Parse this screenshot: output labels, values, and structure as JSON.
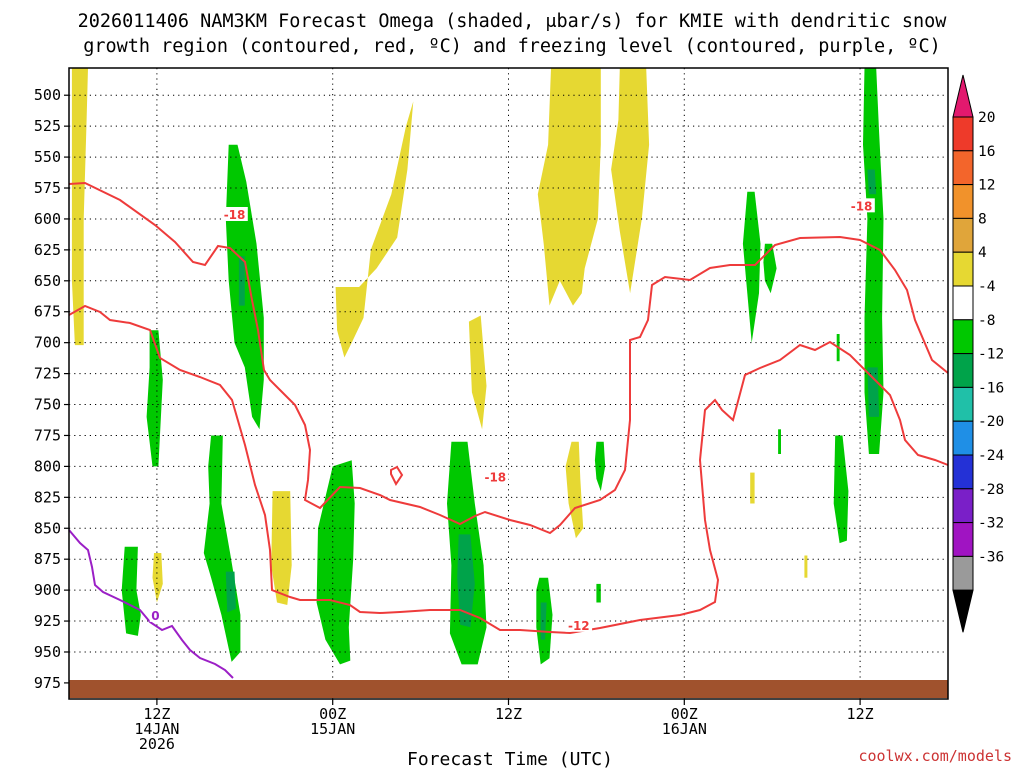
{
  "chart_data": {
    "type": "heatmap",
    "title_line1": "2026011406 NAM3KM Forecast Omega (shaded, μbar/s) for KMIE with dendritic snow",
    "title_line2": "growth region (contoured, red, ºC) and freezing level (contoured, purple, ºC)",
    "xlabel": "Forecast Time (UTC)",
    "credit": "coolwx.com/models",
    "x_range_hours": [
      0,
      60
    ],
    "y_range_hpa": [
      988,
      478
    ],
    "y_ticks": [
      500,
      525,
      550,
      575,
      600,
      625,
      650,
      675,
      700,
      725,
      750,
      775,
      800,
      825,
      850,
      875,
      900,
      925,
      950,
      975
    ],
    "x_ticks": [
      {
        "hour": 6,
        "lines": [
          "12Z",
          "14JAN",
          "2026"
        ]
      },
      {
        "hour": 18,
        "lines": [
          "00Z",
          "15JAN"
        ]
      },
      {
        "hour": 30,
        "lines": [
          "12Z"
        ]
      },
      {
        "hour": 42,
        "lines": [
          "00Z",
          "16JAN"
        ]
      },
      {
        "hour": 54,
        "lines": [
          "12Z"
        ]
      }
    ],
    "colorbar": {
      "labels": [
        20,
        16,
        12,
        8,
        4,
        -4,
        -8,
        -12,
        -16,
        -20,
        -24,
        -28,
        -32,
        -36
      ],
      "colors": [
        "#e2196e",
        "#ee3a2a",
        "#f3652b",
        "#f1922b",
        "#e0a53a",
        "#e6d832",
        "#ffffff",
        "#00c800",
        "#00a34a",
        "#20c0a8",
        "#1f8fe6",
        "#2431d6",
        "#7a1fc8",
        "#a014c2",
        "#9a9a9a",
        "#000000"
      ]
    },
    "contour_labels": [
      {
        "text": "-18",
        "color": "#ee3b3b",
        "hour": 11.3,
        "hpa": 596
      },
      {
        "text": "-18",
        "color": "#ee3b3b",
        "hour": 29.1,
        "hpa": 808
      },
      {
        "text": "-18",
        "color": "#ee3b3b",
        "hour": 54.1,
        "hpa": 589
      },
      {
        "text": "-12",
        "color": "#ee3b3b",
        "hour": 34.8,
        "hpa": 928
      },
      {
        "text": "0",
        "color": "#9b1fc6",
        "hour": 5.9,
        "hpa": 920
      }
    ],
    "omega_regions": [
      {
        "level": 4,
        "points": [
          [
            0.2,
            478
          ],
          [
            1.3,
            478
          ],
          [
            1.2,
            520
          ],
          [
            1.0,
            600
          ],
          [
            1.0,
            702
          ],
          [
            0.4,
            702
          ],
          [
            0.2,
            650
          ]
        ]
      },
      {
        "level": 4,
        "points": [
          [
            18.2,
            655
          ],
          [
            19.8,
            655
          ],
          [
            21.0,
            640
          ],
          [
            22.4,
            615
          ],
          [
            23.1,
            560
          ],
          [
            23.5,
            505
          ],
          [
            23.0,
            525
          ],
          [
            22.0,
            580
          ],
          [
            20.6,
            625
          ],
          [
            20.1,
            680
          ],
          [
            19.3,
            700
          ],
          [
            18.8,
            712
          ],
          [
            18.3,
            690
          ]
        ]
      },
      {
        "level": 4,
        "points": [
          [
            32.9,
            478
          ],
          [
            36.3,
            478
          ],
          [
            36.3,
            540
          ],
          [
            36.1,
            600
          ],
          [
            35.2,
            640
          ],
          [
            35.0,
            660
          ],
          [
            34.4,
            670
          ],
          [
            33.5,
            650
          ],
          [
            32.8,
            670
          ],
          [
            32.4,
            620
          ],
          [
            32.0,
            580
          ],
          [
            32.7,
            540
          ]
        ]
      },
      {
        "level": 4,
        "points": [
          [
            37.6,
            478
          ],
          [
            39.4,
            478
          ],
          [
            39.6,
            540
          ],
          [
            39.1,
            600
          ],
          [
            38.3,
            660
          ],
          [
            37.6,
            610
          ],
          [
            37.0,
            560
          ],
          [
            37.5,
            520
          ]
        ]
      },
      {
        "level": 4,
        "points": [
          [
            27.3,
            683
          ],
          [
            28.1,
            678
          ],
          [
            28.5,
            735
          ],
          [
            28.2,
            770
          ],
          [
            27.5,
            740
          ]
        ]
      },
      {
        "level": 4,
        "points": [
          [
            34.3,
            780
          ],
          [
            34.8,
            780
          ],
          [
            34.9,
            810
          ],
          [
            35.1,
            850
          ],
          [
            34.6,
            858
          ],
          [
            34.1,
            830
          ],
          [
            33.9,
            800
          ]
        ]
      },
      {
        "level": 4,
        "points": [
          [
            13.9,
            820
          ],
          [
            15.1,
            820
          ],
          [
            15.2,
            880
          ],
          [
            14.9,
            912
          ],
          [
            14.2,
            910
          ],
          [
            13.8,
            880
          ]
        ]
      },
      {
        "level": 4,
        "points": [
          [
            5.8,
            870
          ],
          [
            6.3,
            870
          ],
          [
            6.4,
            895
          ],
          [
            6.0,
            910
          ],
          [
            5.7,
            890
          ]
        ]
      },
      {
        "level": 4,
        "points": [
          [
            46.5,
            805
          ],
          [
            46.8,
            805
          ],
          [
            46.8,
            830
          ],
          [
            46.5,
            830
          ]
        ]
      },
      {
        "level": 4,
        "points": [
          [
            50.2,
            872
          ],
          [
            50.4,
            872
          ],
          [
            50.4,
            890
          ],
          [
            50.2,
            890
          ]
        ]
      },
      {
        "level": -4,
        "points": [
          [
            10.9,
            540
          ],
          [
            11.5,
            540
          ],
          [
            12.1,
            570
          ],
          [
            12.8,
            620
          ],
          [
            13.3,
            680
          ],
          [
            13.3,
            730
          ],
          [
            13.0,
            770
          ],
          [
            12.5,
            760
          ],
          [
            12.0,
            720
          ],
          [
            11.3,
            700
          ],
          [
            10.9,
            650
          ],
          [
            10.7,
            600
          ]
        ]
      },
      {
        "level": -4,
        "points": [
          [
            5.5,
            690
          ],
          [
            6.1,
            690
          ],
          [
            6.4,
            730
          ],
          [
            6.1,
            800
          ],
          [
            5.7,
            800
          ],
          [
            5.3,
            760
          ],
          [
            5.5,
            720
          ]
        ]
      },
      {
        "level": -4,
        "points": [
          [
            9.7,
            775
          ],
          [
            10.5,
            775
          ],
          [
            10.4,
            830
          ],
          [
            11.0,
            870
          ],
          [
            11.7,
            920
          ],
          [
            11.7,
            950
          ],
          [
            11.1,
            958
          ],
          [
            10.4,
            920
          ],
          [
            9.7,
            890
          ],
          [
            9.2,
            870
          ],
          [
            9.6,
            830
          ],
          [
            9.5,
            800
          ]
        ]
      },
      {
        "level": -4,
        "points": [
          [
            3.8,
            865
          ],
          [
            4.7,
            865
          ],
          [
            4.6,
            900
          ],
          [
            4.9,
            920
          ],
          [
            4.7,
            937
          ],
          [
            3.9,
            935
          ],
          [
            3.6,
            900
          ]
        ]
      },
      {
        "level": -4,
        "points": [
          [
            18.0,
            800
          ],
          [
            19.3,
            795
          ],
          [
            19.5,
            830
          ],
          [
            19.4,
            875
          ],
          [
            19.1,
            930
          ],
          [
            19.2,
            957
          ],
          [
            18.5,
            960
          ],
          [
            17.5,
            940
          ],
          [
            16.9,
            910
          ],
          [
            17.0,
            850
          ],
          [
            17.4,
            830
          ]
        ]
      },
      {
        "level": -4,
        "points": [
          [
            26.1,
            780
          ],
          [
            27.2,
            780
          ],
          [
            27.7,
            830
          ],
          [
            28.3,
            880
          ],
          [
            28.5,
            930
          ],
          [
            27.9,
            960
          ],
          [
            26.8,
            960
          ],
          [
            26.0,
            935
          ],
          [
            26.1,
            880
          ],
          [
            25.8,
            830
          ]
        ]
      },
      {
        "level": -4,
        "points": [
          [
            32.1,
            890
          ],
          [
            32.7,
            890
          ],
          [
            33.0,
            920
          ],
          [
            32.8,
            955
          ],
          [
            32.2,
            960
          ],
          [
            31.9,
            930
          ],
          [
            31.9,
            900
          ]
        ]
      },
      {
        "level": -4,
        "points": [
          [
            36.0,
            780
          ],
          [
            36.5,
            780
          ],
          [
            36.6,
            800
          ],
          [
            36.3,
            820
          ],
          [
            36.0,
            810
          ],
          [
            35.9,
            795
          ]
        ]
      },
      {
        "level": -4,
        "points": [
          [
            36.0,
            895
          ],
          [
            36.3,
            895
          ],
          [
            36.3,
            910
          ],
          [
            36.0,
            910
          ]
        ]
      },
      {
        "level": -4,
        "points": [
          [
            46.3,
            578
          ],
          [
            46.8,
            578
          ],
          [
            47.2,
            620
          ],
          [
            47.1,
            660
          ],
          [
            46.6,
            700
          ],
          [
            46.3,
            660
          ],
          [
            46.0,
            620
          ]
        ]
      },
      {
        "level": -4,
        "points": [
          [
            47.5,
            620
          ],
          [
            48.0,
            620
          ],
          [
            48.3,
            640
          ],
          [
            47.9,
            660
          ],
          [
            47.5,
            650
          ],
          [
            47.4,
            635
          ]
        ]
      },
      {
        "level": -4,
        "points": [
          [
            48.4,
            770
          ],
          [
            48.6,
            770
          ],
          [
            48.6,
            790
          ],
          [
            48.4,
            790
          ]
        ]
      },
      {
        "level": -4,
        "points": [
          [
            52.4,
            693
          ],
          [
            52.6,
            693
          ],
          [
            52.6,
            715
          ],
          [
            52.4,
            715
          ]
        ]
      },
      {
        "level": -4,
        "points": [
          [
            52.3,
            775
          ],
          [
            52.8,
            775
          ],
          [
            53.2,
            820
          ],
          [
            53.1,
            860
          ],
          [
            52.6,
            862
          ],
          [
            52.2,
            830
          ]
        ]
      },
      {
        "level": -4,
        "points": [
          [
            54.3,
            478
          ],
          [
            55.1,
            478
          ],
          [
            55.3,
            530
          ],
          [
            55.6,
            600
          ],
          [
            55.5,
            680
          ],
          [
            55.6,
            740
          ],
          [
            55.3,
            790
          ],
          [
            54.6,
            790
          ],
          [
            54.3,
            740
          ],
          [
            54.3,
            680
          ],
          [
            54.5,
            600
          ],
          [
            54.2,
            540
          ]
        ]
      },
      {
        "level": -8,
        "points": [
          [
            11.6,
            630
          ],
          [
            12.0,
            630
          ],
          [
            12.0,
            670
          ],
          [
            11.6,
            670
          ]
        ]
      },
      {
        "level": -8,
        "points": [
          [
            10.7,
            885
          ],
          [
            11.3,
            885
          ],
          [
            11.4,
            915
          ],
          [
            10.8,
            918
          ]
        ]
      },
      {
        "level": -8,
        "points": [
          [
            26.6,
            855
          ],
          [
            27.4,
            855
          ],
          [
            27.7,
            895
          ],
          [
            27.4,
            930
          ],
          [
            26.7,
            928
          ],
          [
            26.5,
            890
          ]
        ]
      },
      {
        "level": -8,
        "points": [
          [
            32.2,
            910
          ],
          [
            32.6,
            910
          ],
          [
            32.5,
            940
          ],
          [
            32.2,
            940
          ]
        ]
      },
      {
        "level": -8,
        "points": [
          [
            54.5,
            560
          ],
          [
            55.0,
            560
          ],
          [
            55.1,
            580
          ],
          [
            54.6,
            580
          ]
        ]
      },
      {
        "level": -8,
        "points": [
          [
            54.5,
            720
          ],
          [
            55.2,
            720
          ],
          [
            55.3,
            760
          ],
          [
            54.6,
            760
          ]
        ]
      }
    ]
  }
}
